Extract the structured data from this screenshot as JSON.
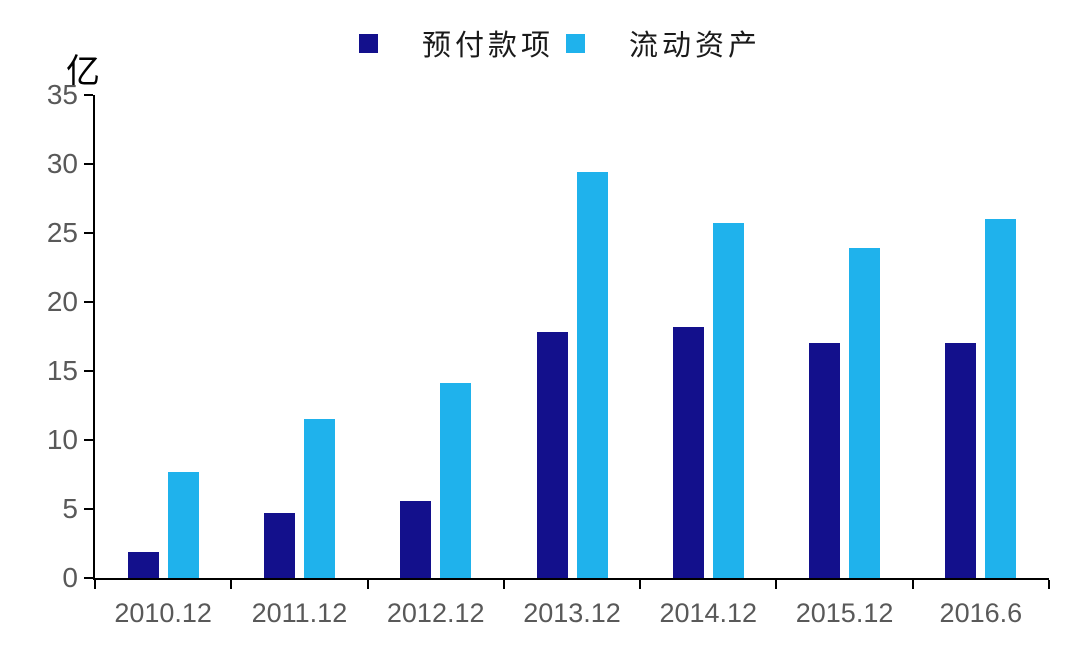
{
  "chart_data": {
    "type": "bar",
    "title": "",
    "unit_label": "亿",
    "categories": [
      "2010.12",
      "2011.12",
      "2012.12",
      "2013.12",
      "2014.12",
      "2015.12",
      "2016.6"
    ],
    "series": [
      {
        "name": "预付款项",
        "color": "#13108C",
        "values": [
          1.9,
          4.7,
          5.6,
          17.8,
          18.2,
          17.0,
          17.0
        ]
      },
      {
        "name": "流动资产",
        "color": "#1FB2EC",
        "values": [
          7.7,
          11.5,
          14.1,
          29.4,
          25.7,
          23.9,
          26.0
        ]
      }
    ],
    "ylim": [
      0,
      35
    ],
    "ytick_step": 5,
    "grid": false,
    "legend_position": "top",
    "axis_text_color": "#595959",
    "axis_line_color": "#000000",
    "background_color": "#FFFFFF"
  }
}
